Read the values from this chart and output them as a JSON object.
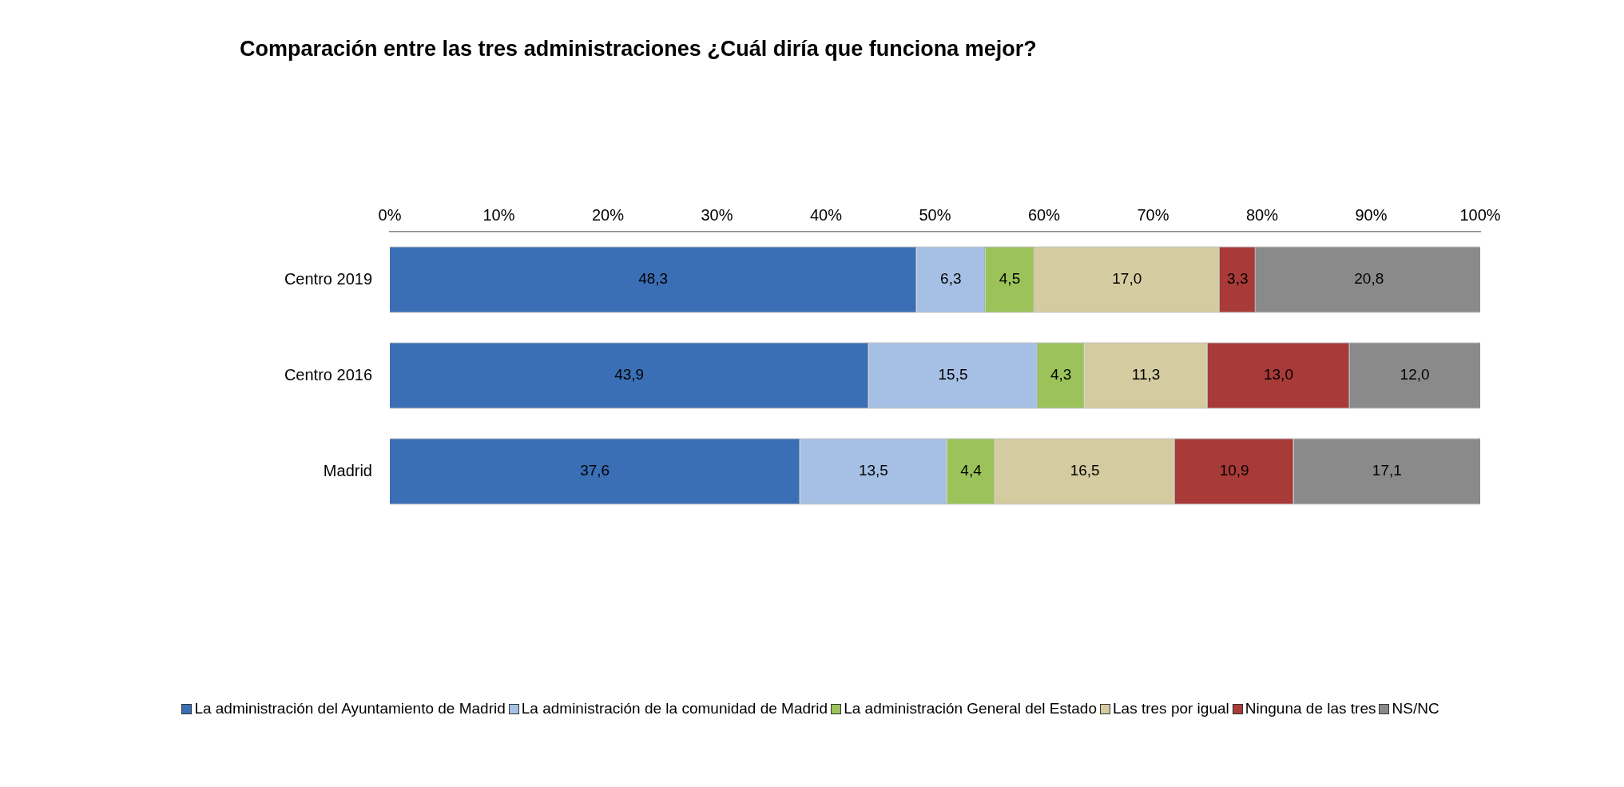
{
  "chart_data": {
    "type": "bar",
    "orientation": "horizontal",
    "stacked": true,
    "title": "Comparación entre las tres administraciones ¿Cuál diría que funciona mejor?",
    "categories": [
      "Centro 2019",
      "Centro 2016",
      "Madrid"
    ],
    "series": [
      {
        "name": "La administración del Ayuntamiento de Madrid",
        "color": "#3a6fb5",
        "values": [
          48.3,
          43.9,
          37.6
        ]
      },
      {
        "name": "La administración de la comunidad de Madrid",
        "color": "#a5c0e4",
        "values": [
          6.3,
          15.5,
          13.5
        ]
      },
      {
        "name": "La administración General del Estado",
        "color": "#9bc35a",
        "values": [
          4.5,
          4.3,
          4.4
        ]
      },
      {
        "name": "Las tres por igual",
        "color": "#d4cba0",
        "values": [
          17.0,
          11.3,
          16.5
        ]
      },
      {
        "name": "Ninguna de las tres",
        "color": "#a83a38",
        "values": [
          3.3,
          13.0,
          10.9
        ]
      },
      {
        "name": "NS/NC",
        "color": "#8a8a8a",
        "values": [
          20.8,
          12.0,
          17.1
        ]
      }
    ],
    "value_labels": [
      [
        "48,3",
        "43,9",
        "37,6"
      ],
      [
        "6,3",
        "15,5",
        "13,5"
      ],
      [
        "4,5",
        "4,3",
        "4,4"
      ],
      [
        "17,0",
        "11,3",
        "16,5"
      ],
      [
        "3,3",
        "13,0",
        "10,9"
      ],
      [
        "20,8",
        "12,0",
        "17,1"
      ]
    ],
    "xlim": [
      0,
      100
    ],
    "xticks": [
      {
        "value": 0,
        "label": "0%"
      },
      {
        "value": 10,
        "label": "10%"
      },
      {
        "value": 20,
        "label": "20%"
      },
      {
        "value": 30,
        "label": "30%"
      },
      {
        "value": 40,
        "label": "40%"
      },
      {
        "value": 50,
        "label": "50%"
      },
      {
        "value": 60,
        "label": "60%"
      },
      {
        "value": 70,
        "label": "70%"
      },
      {
        "value": 80,
        "label": "80%"
      },
      {
        "value": 90,
        "label": "90%"
      },
      {
        "value": 100,
        "label": "100%"
      }
    ],
    "grid": false,
    "legend": "bottom"
  }
}
